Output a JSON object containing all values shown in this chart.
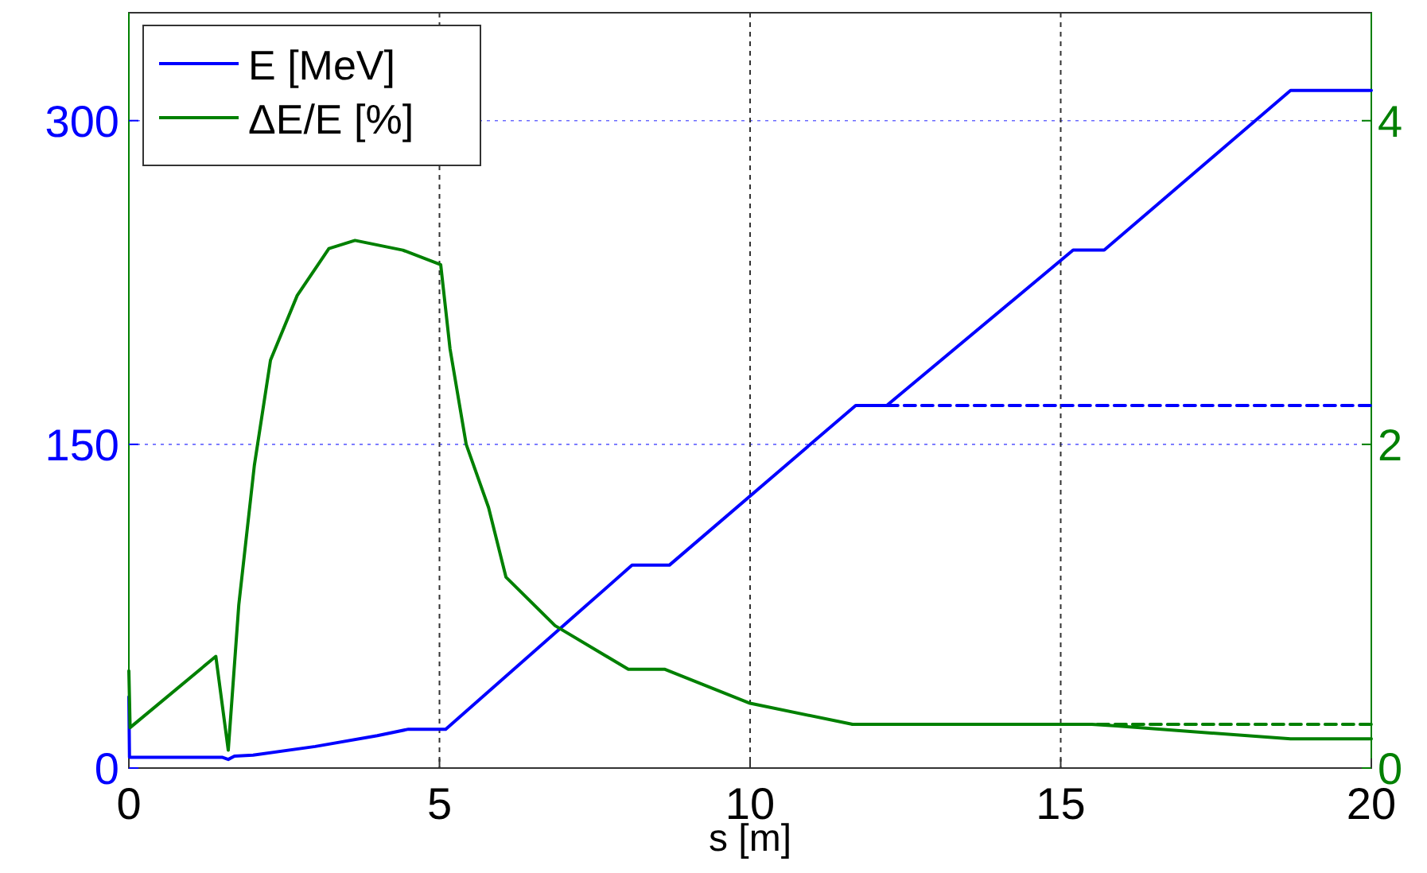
{
  "chart_data": {
    "type": "line",
    "xlabel": "s [m]",
    "xlim": [
      0,
      20
    ],
    "xticks": [
      0,
      5,
      10,
      15,
      20
    ],
    "ylim": [
      0,
      350
    ],
    "yticks": [
      0,
      150,
      300
    ],
    "y2lim": [
      0,
      4.667
    ],
    "y2ticks": [
      0,
      2,
      4
    ],
    "grid": true,
    "legend": "top left",
    "marker": "none",
    "series": [
      {
        "name": "E [MeV]",
        "color": "#0000ff",
        "axis": "y",
        "line_style": "solid",
        "x": [
          0,
          0.01,
          1.5,
          1.6,
          1.7,
          2,
          3,
          4,
          4.5,
          5.1,
          8.1,
          8.7,
          11.7,
          12.2,
          15.2,
          15.7,
          18.7,
          20
        ],
        "values": [
          33,
          5,
          5,
          4,
          5.5,
          6,
          10,
          15,
          18,
          18,
          94,
          94,
          168,
          168,
          240,
          240,
          314,
          314
        ]
      },
      {
        "name": "ΔE/E [%]",
        "color": "#008000",
        "axis": "y2",
        "line_style": "solid",
        "x": [
          0,
          0.02,
          1.4,
          1.6,
          1.77,
          2.02,
          2.28,
          2.71,
          3.22,
          3.64,
          4.41,
          5.02,
          5.17,
          5.43,
          5.79,
          6.07,
          6.86,
          8.04,
          8.63,
          10,
          11.65,
          15.5,
          15.9,
          18.7,
          20
        ],
        "values": [
          0.6,
          0.25,
          0.69,
          0.11,
          1.01,
          1.87,
          2.52,
          2.92,
          3.21,
          3.26,
          3.2,
          3.11,
          2.59,
          2,
          1.61,
          1.18,
          0.88,
          0.61,
          0.61,
          0.4,
          0.27,
          0.27,
          0.26,
          0.18,
          0.18
        ]
      },
      {
        "color": "#0000ff",
        "axis": "y",
        "line_style": "dashed",
        "x": [
          12.2,
          20
        ],
        "values": [
          168,
          168
        ]
      },
      {
        "color": "#008000",
        "axis": "y2",
        "line_style": "dashed",
        "x": [
          11.65,
          20
        ],
        "values": [
          0.27,
          0.27
        ]
      }
    ]
  }
}
